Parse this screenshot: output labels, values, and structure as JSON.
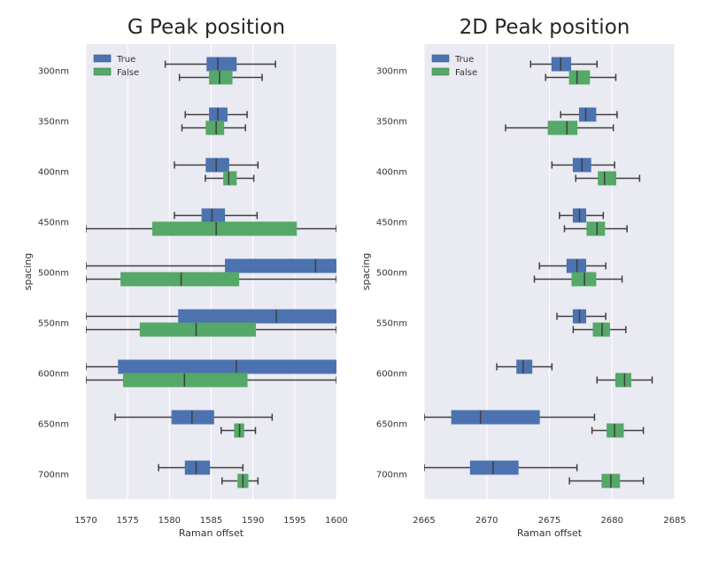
{
  "colors": {
    "true": "#4C72B0",
    "false": "#55A868",
    "panel": "#EAEAF2",
    "grid": "#ffffff",
    "whisker": "#3f3f3f"
  },
  "chart_data": [
    {
      "type": "box",
      "title": "G Peak position",
      "xlabel": "Raman offset",
      "ylabel": "spacing",
      "xlim": [
        1570,
        1600
      ],
      "xticks": [
        "1570",
        "1575",
        "1580",
        "1585",
        "1590",
        "1595",
        "1600"
      ],
      "categories": [
        "300nm",
        "350nm",
        "400nm",
        "450nm",
        "500nm",
        "550nm",
        "600nm",
        "650nm",
        "700nm"
      ],
      "legend": {
        "position": "top-left",
        "entries": [
          "True",
          "False"
        ]
      },
      "grid": true,
      "series": [
        {
          "name": "True",
          "boxes": [
            {
              "low": 1579.5,
              "q1": 1584.5,
              "median": 1585.8,
              "q3": 1588.0,
              "high": 1592.7
            },
            {
              "low": 1581.9,
              "q1": 1584.8,
              "median": 1585.8,
              "q3": 1586.9,
              "high": 1589.3
            },
            {
              "low": 1580.6,
              "q1": 1584.4,
              "median": 1585.6,
              "q3": 1587.1,
              "high": 1590.6
            },
            {
              "low": 1580.6,
              "q1": 1583.9,
              "median": 1585.1,
              "q3": 1586.6,
              "high": 1590.5
            },
            {
              "low": 1570.0,
              "q1": 1586.7,
              "median": 1597.5,
              "q3": 1600.0,
              "high": 1600.0
            },
            {
              "low": 1570.0,
              "q1": 1581.1,
              "median": 1592.8,
              "q3": 1600.0,
              "high": 1600.0
            },
            {
              "low": 1570.0,
              "q1": 1573.9,
              "median": 1588.0,
              "q3": 1600.0,
              "high": 1600.0
            },
            {
              "low": 1573.5,
              "q1": 1580.3,
              "median": 1582.7,
              "q3": 1585.3,
              "high": 1592.3
            },
            {
              "low": 1578.7,
              "q1": 1581.9,
              "median": 1583.2,
              "q3": 1584.8,
              "high": 1588.8
            }
          ]
        },
        {
          "name": "False",
          "boxes": [
            {
              "low": 1581.2,
              "q1": 1584.8,
              "median": 1586.0,
              "q3": 1587.5,
              "high": 1591.1
            },
            {
              "low": 1581.5,
              "q1": 1584.4,
              "median": 1585.6,
              "q3": 1586.5,
              "high": 1589.1
            },
            {
              "low": 1584.3,
              "q1": 1586.5,
              "median": 1587.1,
              "q3": 1588.0,
              "high": 1590.1
            },
            {
              "low": 1570.0,
              "q1": 1578.0,
              "median": 1585.6,
              "q3": 1595.2,
              "high": 1600.0
            },
            {
              "low": 1570.0,
              "q1": 1574.2,
              "median": 1581.4,
              "q3": 1588.3,
              "high": 1600.0
            },
            {
              "low": 1570.0,
              "q1": 1576.5,
              "median": 1583.2,
              "q3": 1590.3,
              "high": 1600.0
            },
            {
              "low": 1570.0,
              "q1": 1574.5,
              "median": 1581.8,
              "q3": 1589.3,
              "high": 1600.0
            },
            {
              "low": 1586.2,
              "q1": 1587.8,
              "median": 1588.4,
              "q3": 1588.9,
              "high": 1590.3
            },
            {
              "low": 1586.3,
              "q1": 1588.2,
              "median": 1588.8,
              "q3": 1589.4,
              "high": 1590.6
            }
          ]
        }
      ]
    },
    {
      "type": "box",
      "title": "2D Peak position",
      "xlabel": "Raman offset",
      "ylabel": "spacing",
      "xlim": [
        2665,
        2685
      ],
      "xticks": [
        "2665",
        "2670",
        "2675",
        "2680",
        "2685"
      ],
      "categories": [
        "300nm",
        "350nm",
        "400nm",
        "450nm",
        "500nm",
        "550nm",
        "600nm",
        "650nm",
        "700nm"
      ],
      "legend": {
        "position": "top-left",
        "entries": [
          "True",
          "False"
        ]
      },
      "grid": true,
      "series": [
        {
          "name": "True",
          "boxes": [
            {
              "low": 2673.5,
              "q1": 2675.2,
              "median": 2675.9,
              "q3": 2676.7,
              "high": 2678.8
            },
            {
              "low": 2675.9,
              "q1": 2677.4,
              "median": 2677.9,
              "q3": 2678.7,
              "high": 2680.4
            },
            {
              "low": 2675.2,
              "q1": 2676.9,
              "median": 2677.6,
              "q3": 2678.3,
              "high": 2680.2
            },
            {
              "low": 2675.8,
              "q1": 2676.9,
              "median": 2677.4,
              "q3": 2677.9,
              "high": 2679.3
            },
            {
              "low": 2674.2,
              "q1": 2676.4,
              "median": 2677.2,
              "q3": 2677.9,
              "high": 2679.5
            },
            {
              "low": 2675.6,
              "q1": 2676.9,
              "median": 2677.4,
              "q3": 2677.9,
              "high": 2679.5
            },
            {
              "low": 2670.8,
              "q1": 2672.4,
              "median": 2672.9,
              "q3": 2673.6,
              "high": 2675.2
            },
            {
              "low": 2665.0,
              "q1": 2667.2,
              "median": 2669.5,
              "q3": 2674.2,
              "high": 2678.6
            },
            {
              "low": 2665.0,
              "q1": 2668.7,
              "median": 2670.5,
              "q3": 2672.5,
              "high": 2677.2
            }
          ]
        },
        {
          "name": "False",
          "boxes": [
            {
              "low": 2674.7,
              "q1": 2676.6,
              "median": 2677.2,
              "q3": 2678.2,
              "high": 2680.3
            },
            {
              "low": 2671.5,
              "q1": 2674.9,
              "median": 2676.4,
              "q3": 2677.2,
              "high": 2680.1
            },
            {
              "low": 2677.1,
              "q1": 2678.9,
              "median": 2679.4,
              "q3": 2680.3,
              "high": 2682.2
            },
            {
              "low": 2676.2,
              "q1": 2678.0,
              "median": 2678.8,
              "q3": 2679.4,
              "high": 2681.2
            },
            {
              "low": 2673.8,
              "q1": 2676.8,
              "median": 2677.8,
              "q3": 2678.7,
              "high": 2680.8
            },
            {
              "low": 2676.9,
              "q1": 2678.5,
              "median": 2679.2,
              "q3": 2679.8,
              "high": 2681.1
            },
            {
              "low": 2678.8,
              "q1": 2680.3,
              "median": 2681.0,
              "q3": 2681.5,
              "high": 2683.2
            },
            {
              "low": 2678.4,
              "q1": 2679.6,
              "median": 2680.2,
              "q3": 2680.9,
              "high": 2682.5
            },
            {
              "low": 2676.6,
              "q1": 2679.2,
              "median": 2679.9,
              "q3": 2680.6,
              "high": 2682.5
            }
          ]
        }
      ]
    }
  ]
}
